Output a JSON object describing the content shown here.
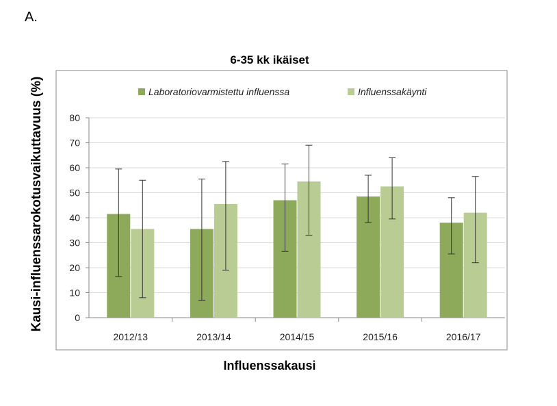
{
  "panel_label": "A.",
  "chart_data": {
    "type": "bar",
    "title": "6-35 kk ikäiset",
    "xlabel": "Influenssakausi",
    "ylabel": "Kausi-influenssarokotusvaikuttavuus (%)",
    "categories": [
      "2012/13",
      "2013/14",
      "2014/15",
      "2015/16",
      "2016/17"
    ],
    "ylim": [
      0,
      80
    ],
    "yticks": [
      0,
      10,
      20,
      30,
      40,
      50,
      60,
      70,
      80
    ],
    "grid": true,
    "legend_position": "top",
    "series": [
      {
        "name": "Laboratoriovarmistettu influenssa",
        "color": "#8caa5a",
        "values": [
          41.5,
          35.5,
          47,
          48.5,
          38
        ],
        "ci_low": [
          16.5,
          7,
          26.5,
          38,
          25.5
        ],
        "ci_high": [
          59.5,
          55.5,
          61.5,
          57,
          48
        ]
      },
      {
        "name": "Influenssakäynti",
        "color": "#b8cc94",
        "values": [
          35.5,
          45.5,
          54.5,
          52.5,
          42
        ],
        "ci_low": [
          8,
          19,
          33,
          39.5,
          22
        ],
        "ci_high": [
          55,
          62.5,
          69,
          64,
          56.5
        ]
      }
    ]
  }
}
